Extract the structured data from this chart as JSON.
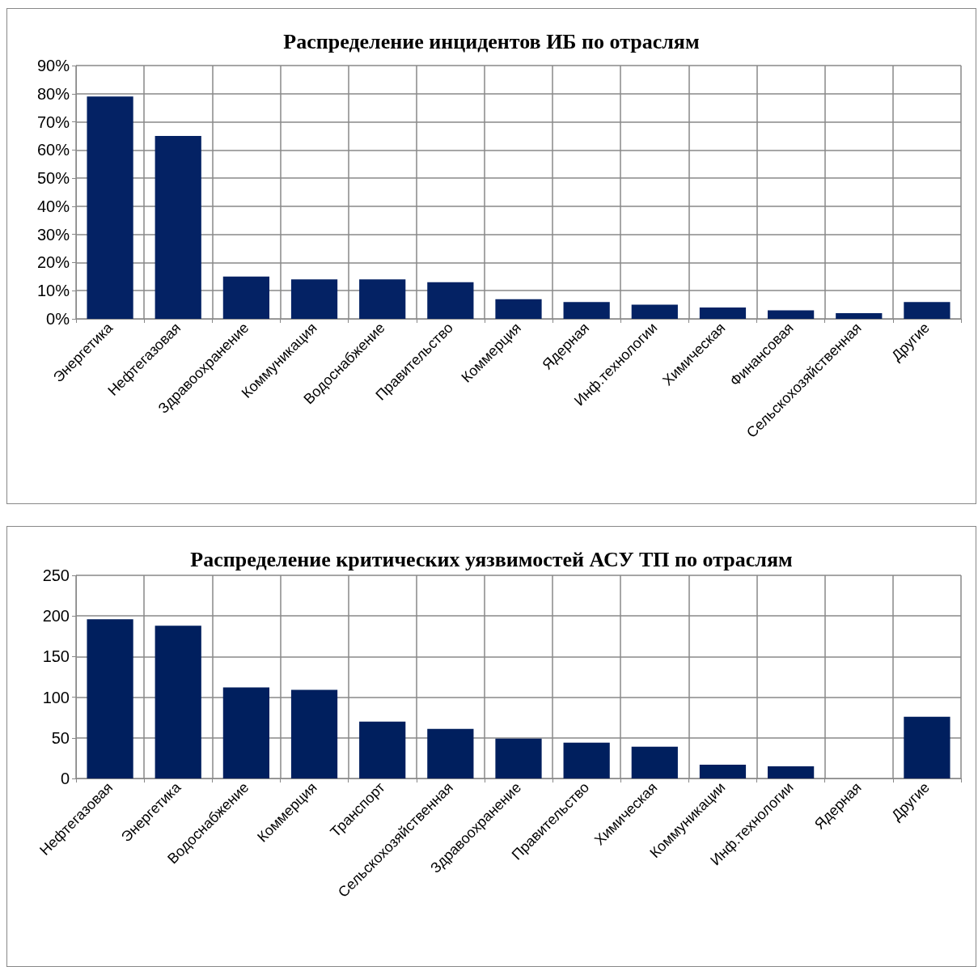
{
  "chart_data": [
    {
      "type": "bar",
      "title": "Распределение инцидентов ИБ по отраслям",
      "categories": [
        "Энергетика",
        "Нефтегазовая",
        "Здравоохранение",
        "Коммуникация",
        "Водоснабжение",
        "Правительство",
        "Коммерция",
        "Ядерная",
        "Инф.технологии",
        "Химическая",
        "Финансовая",
        "Сельскохозяйственная",
        "Другие"
      ],
      "values": [
        79,
        65,
        15,
        14,
        14,
        13,
        7,
        6,
        5,
        4,
        3,
        2,
        6
      ],
      "color": "#042264",
      "ylim": [
        0,
        90
      ],
      "yticks": [
        {
          "value": 0,
          "label": "0%"
        },
        {
          "value": 10,
          "label": "10%"
        },
        {
          "value": 20,
          "label": "20%"
        },
        {
          "value": 30,
          "label": "30%"
        },
        {
          "value": 40,
          "label": "40%"
        },
        {
          "value": 50,
          "label": "50%"
        },
        {
          "value": 60,
          "label": "60%"
        },
        {
          "value": 70,
          "label": "70%"
        },
        {
          "value": 80,
          "label": "80%"
        },
        {
          "value": 90,
          "label": "90%"
        }
      ],
      "grid": true
    },
    {
      "type": "bar",
      "title": "Распределение критических уязвимостей АСУ ТП по отраслям",
      "categories": [
        "Нефтегазовая",
        "Энергетика",
        "Водоснабжение",
        "Коммерция",
        "Транспорт",
        "Сельскохозяйственная",
        "Здравоохранение",
        "Правительство",
        "Химическая",
        "Коммуникации",
        "Инф.технологии",
        "Ядерная",
        "Другие"
      ],
      "values": [
        196,
        188,
        112,
        109,
        70,
        61,
        49,
        44,
        39,
        17,
        15,
        0,
        76
      ],
      "color": "#001f5e",
      "ylim": [
        0,
        250
      ],
      "yticks": [
        0,
        50,
        100,
        150,
        200,
        250
      ],
      "grid": true
    }
  ]
}
